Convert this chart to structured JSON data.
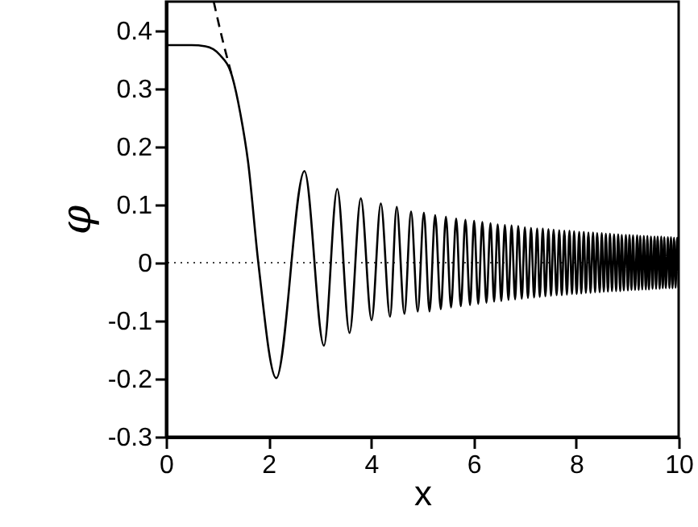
{
  "chart_data": {
    "type": "line",
    "xlabel": "x",
    "ylabel": "φ",
    "xlim": [
      0,
      10
    ],
    "ylim": [
      -0.3,
      0.45
    ],
    "xticks": [
      0,
      2,
      4,
      6,
      8,
      10
    ],
    "yticks": [
      -0.3,
      -0.2,
      -0.1,
      0,
      0.1,
      0.2,
      0.3,
      0.4
    ],
    "marker": "none",
    "series": [
      {
        "color": "#000000",
        "line_style": "solid",
        "x": [
          0,
          0.5,
          0.77,
          1.04,
          1.29,
          1.45,
          1.6,
          1.8,
          2.15,
          2.7,
          3.08,
          3.34,
          3.58,
          3.8,
          4.01,
          4.19,
          4.37,
          4.5,
          4.65,
          4.78,
          4.91,
          5.03,
          5.14,
          5.25,
          5.36,
          5.46,
          5.56,
          5.66,
          5.75,
          5.84,
          5.93,
          6.01,
          6.09,
          6.17,
          6.25,
          6.33,
          6.4,
          6.47,
          6.54,
          6.61,
          6.68,
          6.74,
          6.81,
          6.87,
          6.94,
          7.0,
          7.06,
          7.12,
          7.18,
          7.24,
          7.29,
          7.35,
          7.4,
          7.46,
          7.51,
          7.56,
          7.62,
          7.67,
          7.72,
          7.77,
          7.82,
          7.87,
          7.92,
          7.96,
          8.01,
          8.06,
          8.1,
          8.15,
          8.19,
          8.24,
          8.28,
          8.33,
          8.37,
          8.41,
          8.46,
          8.5,
          8.54,
          8.58,
          8.62,
          8.66,
          8.7,
          8.74,
          8.78,
          8.82,
          8.86,
          8.89,
          8.93,
          8.97,
          9.01,
          9.04,
          9.08,
          9.11,
          9.15,
          9.19,
          9.22,
          9.25,
          9.29,
          9.32,
          9.36,
          9.39,
          9.42,
          9.46,
          9.49,
          9.53,
          9.56,
          9.59,
          9.63,
          9.66,
          9.69,
          9.72,
          9.75,
          9.79,
          9.82,
          9.85,
          9.88,
          9.91,
          9.94,
          9.97,
          10.0
        ],
        "values": [
          0.375,
          0.375,
          0.373,
          0.359,
          0.321,
          0.257,
          0.174,
          0,
          -0.199,
          0.158,
          -0.143,
          0.127,
          -0.121,
          0.111,
          -0.099,
          0.102,
          -0.093,
          0.096,
          -0.088,
          0.088,
          -0.084,
          0.086,
          -0.084,
          0.082,
          -0.08,
          0.079,
          -0.077,
          0.076,
          -0.075,
          0.074,
          -0.073,
          0.072,
          -0.071,
          0.07,
          -0.069,
          0.068,
          -0.067,
          0.066,
          -0.066,
          0.065,
          -0.064,
          0.064,
          -0.063,
          0.063,
          -0.062,
          0.061,
          -0.061,
          0.06,
          -0.06,
          0.059,
          -0.059,
          0.059,
          -0.058,
          0.058,
          -0.057,
          0.057,
          -0.056,
          0.056,
          -0.056,
          0.055,
          -0.055,
          0.055,
          -0.054,
          0.054,
          -0.054,
          0.053,
          -0.053,
          0.053,
          -0.052,
          0.052,
          -0.052,
          0.052,
          -0.051,
          0.051,
          -0.051,
          0.051,
          -0.05,
          0.05,
          -0.05,
          0.05,
          -0.049,
          0.049,
          -0.049,
          0.049,
          -0.049,
          0.048,
          -0.048,
          0.048,
          -0.048,
          0.048,
          -0.047,
          0.047,
          -0.047,
          0.047,
          -0.047,
          0.046,
          -0.046,
          0.046,
          -0.046,
          0.046,
          -0.046,
          0.045,
          -0.045,
          0.045,
          -0.045,
          0.045,
          -0.045,
          0.045,
          -0.044,
          0.044,
          -0.044,
          0.044,
          -0.044,
          0.044,
          -0.044,
          0.043,
          -0.043,
          0.043,
          -0.043
        ]
      },
      {
        "color": "#000000",
        "line_style": "dashed",
        "x": [
          0.93,
          1.1,
          1.29
        ],
        "values": [
          0.45,
          0.385,
          0.321
        ]
      }
    ],
    "ref_lines": [
      {
        "axis": "y",
        "value": 0,
        "color": "#000000",
        "line_style": "dotted"
      }
    ]
  }
}
